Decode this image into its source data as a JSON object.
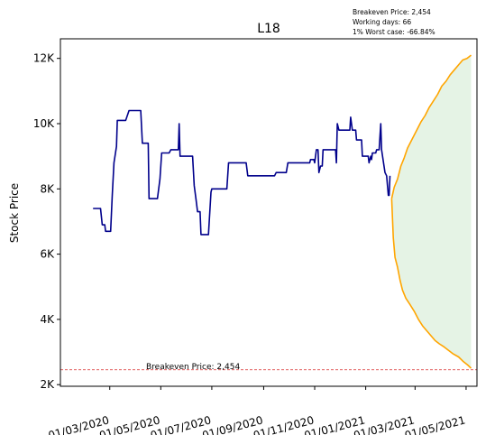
{
  "chart_data": {
    "type": "line",
    "title": "L18",
    "ylabel": "Stock Price",
    "xlabel": "",
    "ylim": [
      1950,
      12600
    ],
    "xlim": [
      "2020-01-02",
      "2021-05-14"
    ],
    "grid": false,
    "info_lines": [
      "Breakeven Price: 2,454",
      "Working days: 66",
      "1% Worst case: -66.84%"
    ],
    "y_ticks": [
      {
        "value": 2000,
        "label": "2K"
      },
      {
        "value": 4000,
        "label": "4K"
      },
      {
        "value": 6000,
        "label": "6K"
      },
      {
        "value": 8000,
        "label": "8K"
      },
      {
        "value": 10000,
        "label": "10K"
      },
      {
        "value": 12000,
        "label": "12K"
      }
    ],
    "x_ticks": [
      {
        "date": "2020-03-01",
        "label": "01/03/2020"
      },
      {
        "date": "2020-05-01",
        "label": "01/05/2020"
      },
      {
        "date": "2020-07-01",
        "label": "01/07/2020"
      },
      {
        "date": "2020-09-01",
        "label": "01/09/2020"
      },
      {
        "date": "2020-11-01",
        "label": "01/11/2020"
      },
      {
        "date": "2021-01-01",
        "label": "01/01/2021"
      },
      {
        "date": "2021-03-01",
        "label": "01/03/2021"
      },
      {
        "date": "2021-05-01",
        "label": "01/05/2021"
      }
    ],
    "breakeven": {
      "value": 2454,
      "label": "Breakeven Price: 2,454",
      "color": "#d62728"
    },
    "colors": {
      "history": "#00008b",
      "projection": "#ffa500",
      "band_fill": "#2ca02c"
    },
    "history": [
      [
        "2020-02-10",
        7400
      ],
      [
        "2020-02-19",
        7400
      ],
      [
        "2020-02-21",
        6900
      ],
      [
        "2020-02-24",
        6900
      ],
      [
        "2020-02-25",
        6700
      ],
      [
        "2020-03-02",
        6700
      ],
      [
        "2020-03-04",
        7800
      ],
      [
        "2020-03-06",
        8800
      ],
      [
        "2020-03-09",
        9300
      ],
      [
        "2020-03-10",
        10100
      ],
      [
        "2020-03-20",
        10100
      ],
      [
        "2020-03-24",
        10400
      ],
      [
        "2020-04-07",
        10400
      ],
      [
        "2020-04-09",
        9400
      ],
      [
        "2020-04-16",
        9400
      ],
      [
        "2020-04-17",
        7700
      ],
      [
        "2020-04-27",
        7700
      ],
      [
        "2020-04-30",
        8300
      ],
      [
        "2020-05-02",
        9100
      ],
      [
        "2020-05-11",
        9100
      ],
      [
        "2020-05-13",
        9200
      ],
      [
        "2020-05-22",
        9200
      ],
      [
        "2020-05-23",
        10000
      ],
      [
        "2020-05-24",
        9000
      ],
      [
        "2020-06-08",
        9000
      ],
      [
        "2020-06-10",
        8100
      ],
      [
        "2020-06-12",
        7700
      ],
      [
        "2020-06-14",
        7300
      ],
      [
        "2020-06-17",
        7300
      ],
      [
        "2020-06-18",
        6600
      ],
      [
        "2020-06-27",
        6600
      ],
      [
        "2020-06-30",
        7900
      ],
      [
        "2020-07-01",
        8000
      ],
      [
        "2020-07-19",
        8000
      ],
      [
        "2020-07-21",
        8800
      ],
      [
        "2020-08-11",
        8800
      ],
      [
        "2020-08-13",
        8400
      ],
      [
        "2020-09-14",
        8400
      ],
      [
        "2020-09-16",
        8500
      ],
      [
        "2020-09-28",
        8500
      ],
      [
        "2020-09-30",
        8800
      ],
      [
        "2020-10-26",
        8800
      ],
      [
        "2020-10-27",
        8900
      ],
      [
        "2020-10-31",
        8900
      ],
      [
        "2020-11-01",
        8800
      ],
      [
        "2020-11-03",
        9200
      ],
      [
        "2020-11-05",
        9200
      ],
      [
        "2020-11-06",
        8500
      ],
      [
        "2020-11-08",
        8700
      ],
      [
        "2020-11-10",
        8700
      ],
      [
        "2020-11-11",
        9200
      ],
      [
        "2020-11-26",
        9200
      ],
      [
        "2020-11-27",
        8800
      ],
      [
        "2020-11-28",
        10000
      ],
      [
        "2020-11-30",
        9800
      ],
      [
        "2020-12-13",
        9800
      ],
      [
        "2020-12-14",
        10200
      ],
      [
        "2020-12-16",
        9800
      ],
      [
        "2020-12-20",
        9800
      ],
      [
        "2020-12-21",
        9500
      ],
      [
        "2020-12-27",
        9500
      ],
      [
        "2020-12-28",
        9000
      ],
      [
        "2021-01-04",
        9000
      ],
      [
        "2021-01-05",
        8800
      ],
      [
        "2021-01-07",
        9000
      ],
      [
        "2021-01-08",
        8900
      ],
      [
        "2021-01-09",
        9100
      ],
      [
        "2021-01-13",
        9100
      ],
      [
        "2021-01-14",
        9200
      ],
      [
        "2021-01-17",
        9200
      ],
      [
        "2021-01-19",
        10000
      ],
      [
        "2021-01-20",
        9200
      ],
      [
        "2021-01-24",
        8500
      ],
      [
        "2021-01-26",
        8400
      ],
      [
        "2021-01-28",
        7800
      ],
      [
        "2021-01-29",
        7800
      ],
      [
        "2021-01-30",
        8400
      ]
    ],
    "projection_upper": [
      [
        "2021-02-01",
        7700
      ],
      [
        "2021-02-04",
        8050
      ],
      [
        "2021-02-08",
        8300
      ],
      [
        "2021-02-12",
        8700
      ],
      [
        "2021-02-16",
        8950
      ],
      [
        "2021-02-20",
        9250
      ],
      [
        "2021-02-25",
        9500
      ],
      [
        "2021-03-03",
        9800
      ],
      [
        "2021-03-08",
        10050
      ],
      [
        "2021-03-13",
        10250
      ],
      [
        "2021-03-18",
        10500
      ],
      [
        "2021-03-23",
        10700
      ],
      [
        "2021-03-28",
        10900
      ],
      [
        "2021-04-02",
        11150
      ],
      [
        "2021-04-07",
        11300
      ],
      [
        "2021-04-12",
        11500
      ],
      [
        "2021-04-17",
        11650
      ],
      [
        "2021-04-22",
        11800
      ],
      [
        "2021-04-27",
        11950
      ],
      [
        "2021-05-02",
        12000
      ],
      [
        "2021-05-07",
        12100
      ]
    ],
    "projection_lower": [
      [
        "2021-02-01",
        7700
      ],
      [
        "2021-02-03",
        6500
      ],
      [
        "2021-02-05",
        5900
      ],
      [
        "2021-02-08",
        5600
      ],
      [
        "2021-02-11",
        5200
      ],
      [
        "2021-02-14",
        4900
      ],
      [
        "2021-02-18",
        4650
      ],
      [
        "2021-02-23",
        4450
      ],
      [
        "2021-02-28",
        4250
      ],
      [
        "2021-03-05",
        4000
      ],
      [
        "2021-03-10",
        3800
      ],
      [
        "2021-03-15",
        3650
      ],
      [
        "2021-03-20",
        3500
      ],
      [
        "2021-03-25",
        3350
      ],
      [
        "2021-03-30",
        3250
      ],
      [
        "2021-04-05",
        3150
      ],
      [
        "2021-04-10",
        3050
      ],
      [
        "2021-04-15",
        2950
      ],
      [
        "2021-04-22",
        2850
      ],
      [
        "2021-04-28",
        2700
      ],
      [
        "2021-05-03",
        2600
      ],
      [
        "2021-05-07",
        2500
      ]
    ]
  }
}
